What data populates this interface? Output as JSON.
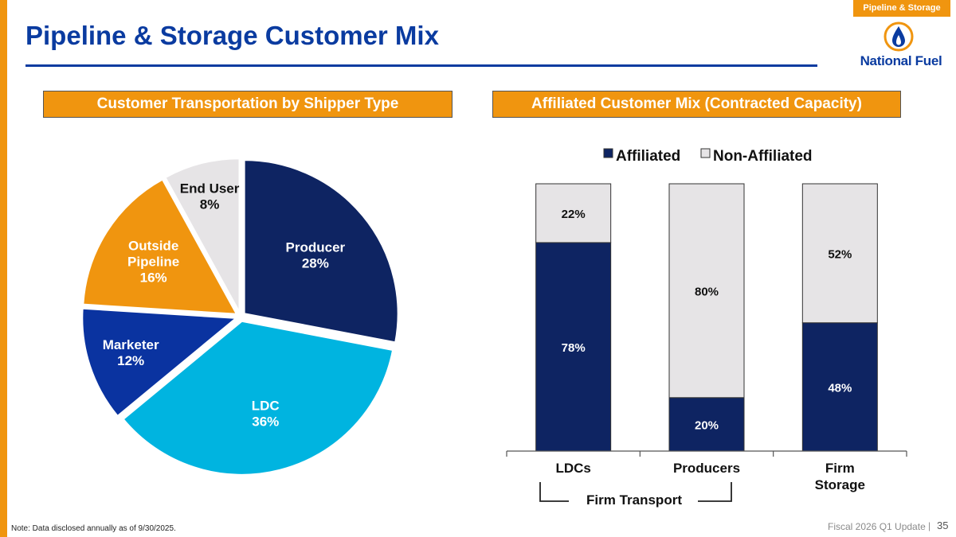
{
  "header": {
    "section_tag": "Pipeline & Storage",
    "title": "Pipeline & Storage Customer Mix",
    "logo_text": "National Fuel"
  },
  "panels": {
    "left_title": "Customer Transportation by Shipper Type",
    "right_title": "Affiliated Customer Mix (Contracted Capacity)"
  },
  "colors": {
    "brand_blue": "#0A3BA0",
    "accent_orange": "#F0950F",
    "navy": "#0E2462",
    "royal": "#0A33A0",
    "sky": "#00B4E0",
    "light_gray": "#E6E4E6"
  },
  "chart_data": [
    {
      "type": "pie",
      "title": "Customer Transportation by Shipper Type",
      "slices": [
        {
          "label": "Producer",
          "value": 28,
          "display": "28%",
          "color": "#0E2462"
        },
        {
          "label": "LDC",
          "value": 36,
          "display": "36%",
          "color": "#00B4E0"
        },
        {
          "label": "Marketer",
          "value": 12,
          "display": "12%",
          "color": "#0A33A0"
        },
        {
          "label": "Outside Pipeline",
          "value": 16,
          "display": "16%",
          "color": "#F0950F"
        },
        {
          "label": "End User",
          "value": 8,
          "display": "8%",
          "color": "#E6E4E6"
        }
      ]
    },
    {
      "type": "bar",
      "stacked": true,
      "title": "Affiliated Customer Mix (Contracted Capacity)",
      "categories": [
        "LDCs",
        "Producers",
        "Firm Storage"
      ],
      "series": [
        {
          "name": "Affiliated",
          "values": [
            78,
            20,
            48
          ],
          "labels": [
            "78%",
            "20%",
            "48%"
          ],
          "color": "#0E2462"
        },
        {
          "name": "Non-Affiliated",
          "values": [
            22,
            80,
            52
          ],
          "labels": [
            "22%",
            "80%",
            "52%"
          ],
          "color": "#E6E4E6"
        }
      ],
      "ylim": [
        0,
        100
      ],
      "grouping_label": "Firm Transport"
    }
  ],
  "footer": {
    "note": "Note: Data disclosed annually as of 9/30/2025.",
    "deck_name": "Fiscal 2026 Q1 Update",
    "separator": "|",
    "page_number": "35"
  }
}
